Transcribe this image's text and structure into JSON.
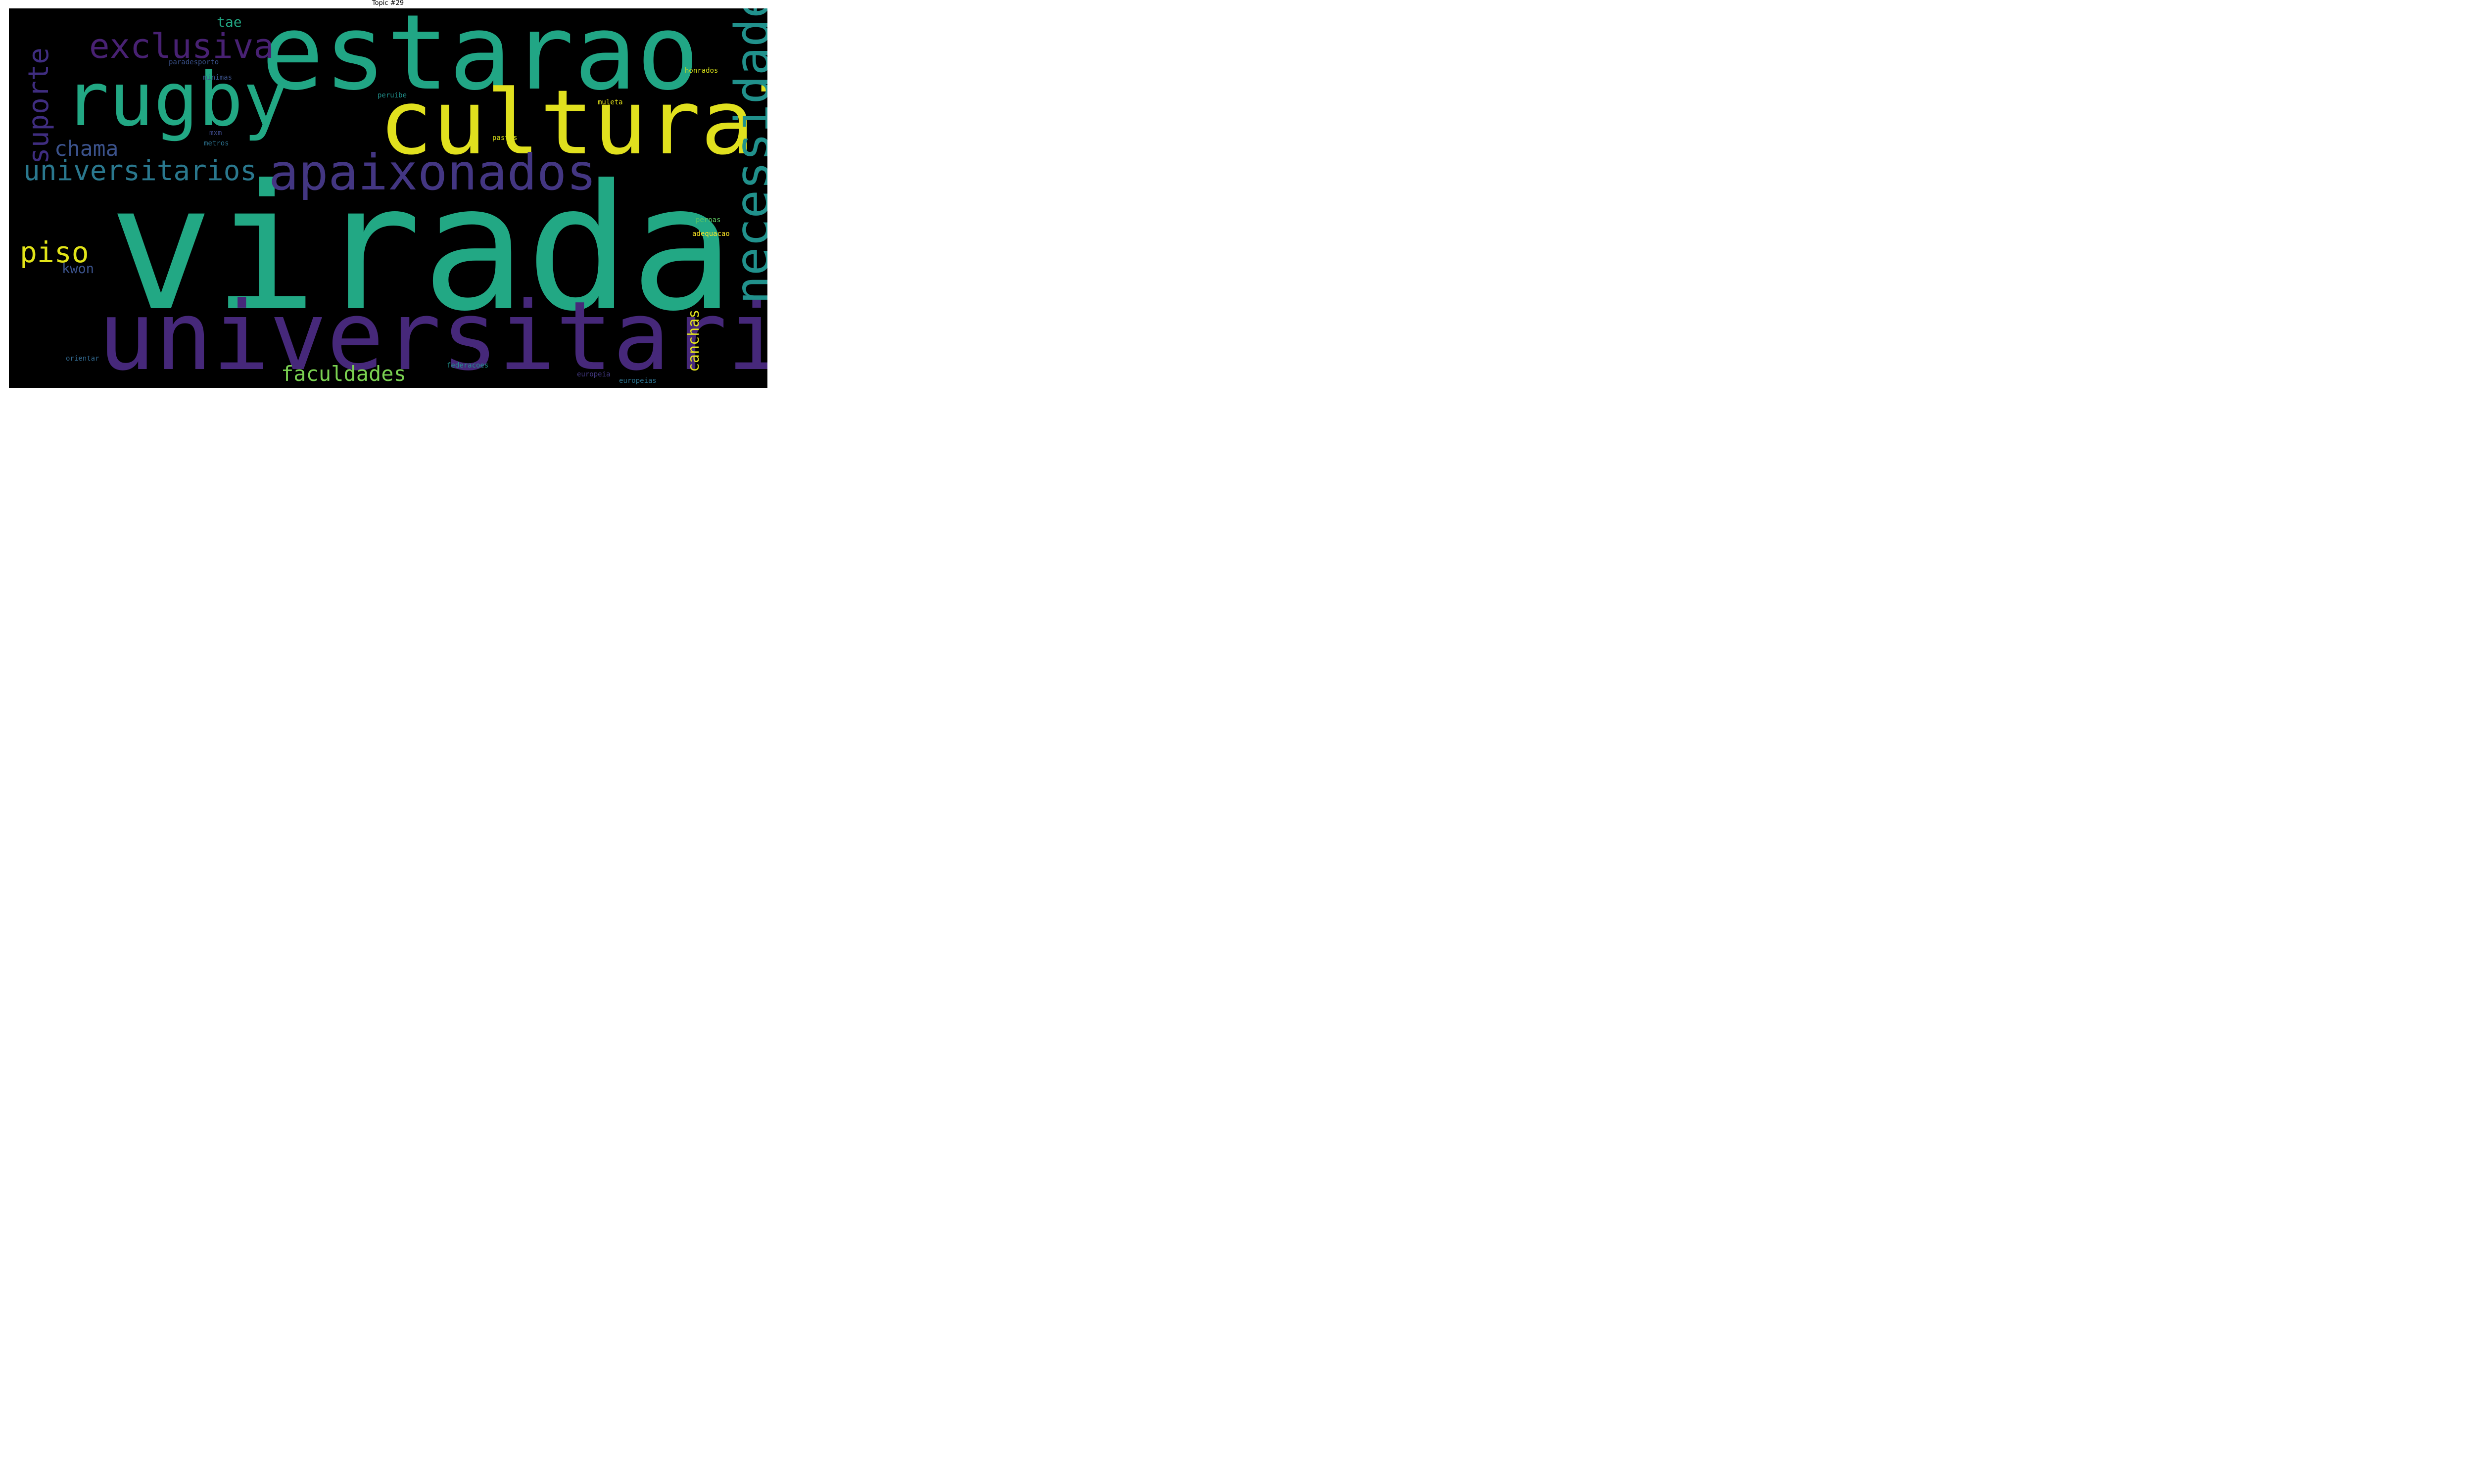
{
  "title": "Topic #29",
  "colors": {
    "background": "#000000",
    "teal": "#22a884",
    "yellow": "#e0e01e",
    "purple": "#46287a",
    "dark_purple": "#482173",
    "blue": "#3b528b",
    "cyan": "#2a788e",
    "green": "#7ad151"
  },
  "words": [
    {
      "text": "virada"
    },
    {
      "text": "estarao"
    },
    {
      "text": "universitaria"
    },
    {
      "text": "rugby"
    },
    {
      "text": "cultural"
    },
    {
      "text": "apaixonados"
    },
    {
      "text": "necessidades"
    },
    {
      "text": "exclusiva"
    },
    {
      "text": "universitarios"
    },
    {
      "text": "suporte"
    },
    {
      "text": "chama"
    },
    {
      "text": "piso"
    },
    {
      "text": "faculdades"
    },
    {
      "text": "canchas"
    },
    {
      "text": "tae"
    },
    {
      "text": "kwon"
    },
    {
      "text": "paradesporto"
    },
    {
      "text": "minimas"
    },
    {
      "text": "peruibe"
    },
    {
      "text": "mxm"
    },
    {
      "text": "metros"
    },
    {
      "text": "pastas"
    },
    {
      "text": "honrados"
    },
    {
      "text": "muleta"
    },
    {
      "text": "pernas"
    },
    {
      "text": "adequacao"
    },
    {
      "text": "orientar"
    },
    {
      "text": "federacoes"
    },
    {
      "text": "europeia"
    },
    {
      "text": "europeias"
    }
  ]
}
